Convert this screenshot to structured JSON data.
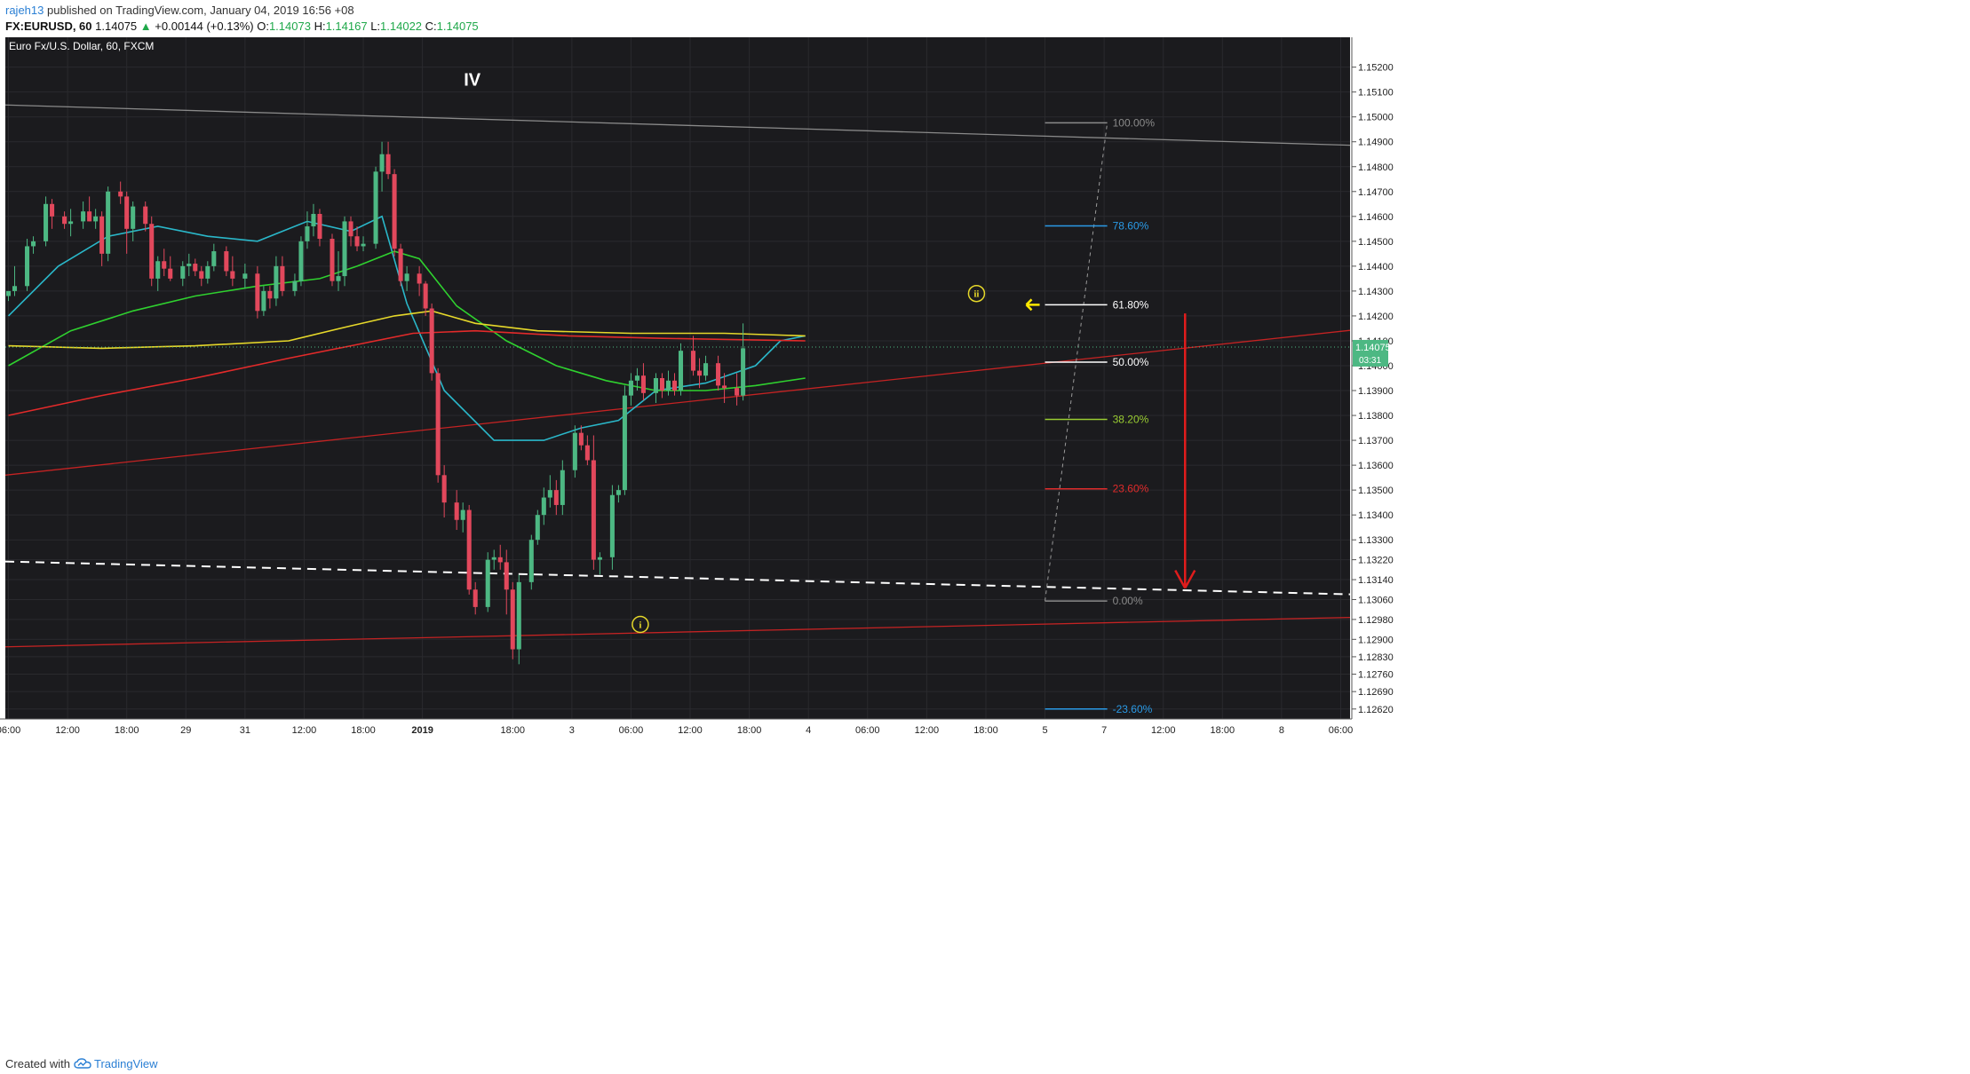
{
  "header": {
    "user": "rajeh13",
    "published": "published on TradingView.com, January 04, 2019 16:56 +08",
    "symbol": "FX:EURUSD, 60",
    "last": "1.14075",
    "change_arrow": "▲",
    "change": "+0.00144 (+0.13%)",
    "o_label": "O:",
    "o": "1.14073",
    "h_label": "H:",
    "h": "1.14167",
    "l_label": "L:",
    "l": "1.14022",
    "c_label": "C:",
    "c": "1.14075"
  },
  "footer": {
    "created_with": "Created with",
    "brand": "TradingView",
    "logo_icon": "tradingview-cloud-icon"
  },
  "colors": {
    "background": "#1b1b1e",
    "grid": "#2a2a2e",
    "bull": "#4db883",
    "bear": "#e2485c",
    "ma_cyan": "#2ab7c9",
    "ma_green": "#2fd12f",
    "ma_yellow": "#e6d82a",
    "ma_red": "#e22a2a",
    "last_price": "#4db883",
    "arrow_red": "#e01c1c",
    "arrow_yellow": "#ffea00"
  },
  "chart_data": {
    "type": "candlestick",
    "title": "Euro Fx/U.S. Dollar, 60, FXCM",
    "ylim": [
      1.1258,
      1.1532
    ],
    "y_ticks": [
      "1.15200",
      "1.15100",
      "1.15000",
      "1.14900",
      "1.14800",
      "1.14700",
      "1.14600",
      "1.14500",
      "1.14400",
      "1.14300",
      "1.14200",
      "1.14100",
      "1.14000",
      "1.13900",
      "1.13800",
      "1.13700",
      "1.13600",
      "1.13500",
      "1.13400",
      "1.13300",
      "1.13220",
      "1.13140",
      "1.13060",
      "1.12980",
      "1.12900",
      "1.12830",
      "1.12760",
      "1.12690",
      "1.12620"
    ],
    "x_ticks": [
      {
        "label": "06:00",
        "bar": 0
      },
      {
        "label": "12:00",
        "bar": 9.5
      },
      {
        "label": "18:00",
        "bar": 19
      },
      {
        "label": "29",
        "bar": 28.5
      },
      {
        "label": "31",
        "bar": 38
      },
      {
        "label": "12:00",
        "bar": 47.5
      },
      {
        "label": "18:00",
        "bar": 57
      },
      {
        "label": "2019",
        "bar": 66.5
      },
      {
        "label": "18:00",
        "bar": 81
      },
      {
        "label": "3",
        "bar": 90.5
      },
      {
        "label": "06:00",
        "bar": 100
      },
      {
        "label": "12:00",
        "bar": 109.5
      },
      {
        "label": "18:00",
        "bar": 119
      },
      {
        "label": "4",
        "bar": 128.5
      },
      {
        "label": "06:00",
        "bar": 138
      },
      {
        "label": "12:00",
        "bar": 147.5
      },
      {
        "label": "18:00",
        "bar": 157
      },
      {
        "label": "5",
        "bar": 166.5
      },
      {
        "label": "7",
        "bar": 176
      },
      {
        "label": "12:00",
        "bar": 185.5
      },
      {
        "label": "18:00",
        "bar": 195
      },
      {
        "label": "8",
        "bar": 204.5
      },
      {
        "label": "06:00",
        "bar": 214
      }
    ],
    "x_range": [
      -0.5,
      215.5
    ],
    "candles": [
      [
        1.1428,
        1.143,
        1.1426,
        1.143
      ],
      [
        1.143,
        1.144,
        1.1428,
        1.1432
      ],
      [
        1.1432,
        1.1451,
        1.143,
        1.1448
      ],
      [
        1.1448,
        1.1452,
        1.1445,
        1.145
      ],
      [
        1.145,
        1.1468,
        1.1448,
        1.1465
      ],
      [
        1.1465,
        1.1467,
        1.1455,
        1.146
      ],
      [
        1.146,
        1.1462,
        1.1455,
        1.1457
      ],
      [
        1.1457,
        1.1463,
        1.1452,
        1.1458
      ],
      [
        1.1458,
        1.1466,
        1.1455,
        1.1462
      ],
      [
        1.1462,
        1.1468,
        1.1458,
        1.1458
      ],
      [
        1.1458,
        1.1463,
        1.1455,
        1.146
      ],
      [
        1.146,
        1.1462,
        1.144,
        1.1445
      ],
      [
        1.1445,
        1.1472,
        1.1442,
        1.147
      ],
      [
        1.147,
        1.1474,
        1.1465,
        1.1468
      ],
      [
        1.1468,
        1.147,
        1.1445,
        1.1455
      ],
      [
        1.1455,
        1.1466,
        1.145,
        1.1464
      ],
      [
        1.1464,
        1.1466,
        1.1454,
        1.1457
      ],
      [
        1.1457,
        1.146,
        1.1432,
        1.1435
      ],
      [
        1.1435,
        1.1444,
        1.143,
        1.1442
      ],
      [
        1.1442,
        1.1447,
        1.1436,
        1.1439
      ],
      [
        1.1439,
        1.1444,
        1.1434,
        1.1435
      ],
      [
        1.1435,
        1.1442,
        1.1432,
        1.144
      ],
      [
        1.144,
        1.1445,
        1.1436,
        1.1441
      ],
      [
        1.1441,
        1.1443,
        1.1436,
        1.1438
      ],
      [
        1.1438,
        1.144,
        1.1432,
        1.1435
      ],
      [
        1.1435,
        1.1442,
        1.1433,
        1.144
      ],
      [
        1.144,
        1.1449,
        1.1438,
        1.1446
      ],
      [
        1.1446,
        1.1448,
        1.1436,
        1.1438
      ],
      [
        1.1438,
        1.1444,
        1.1432,
        1.1435
      ],
      [
        1.1435,
        1.1441,
        1.1431,
        1.1437
      ],
      [
        1.1437,
        1.144,
        1.1419,
        1.1422
      ],
      [
        1.1422,
        1.1432,
        1.142,
        1.143
      ],
      [
        1.143,
        1.1432,
        1.1423,
        1.1427
      ],
      [
        1.1427,
        1.1444,
        1.1424,
        1.144
      ],
      [
        1.144,
        1.1444,
        1.1428,
        1.143
      ],
      [
        1.143,
        1.1437,
        1.1428,
        1.1434
      ],
      [
        1.1434,
        1.1452,
        1.1432,
        1.145
      ],
      [
        1.145,
        1.1462,
        1.1447,
        1.1456
      ],
      [
        1.1456,
        1.1465,
        1.1452,
        1.1461
      ],
      [
        1.1461,
        1.1463,
        1.1448,
        1.1451
      ],
      [
        1.1451,
        1.1453,
        1.1432,
        1.1434
      ],
      [
        1.1434,
        1.1446,
        1.143,
        1.1436
      ],
      [
        1.1436,
        1.146,
        1.1432,
        1.1458
      ],
      [
        1.1458,
        1.146,
        1.1448,
        1.1452
      ],
      [
        1.1452,
        1.1456,
        1.1446,
        1.1448
      ],
      [
        1.1448,
        1.1452,
        1.1446,
        1.1449
      ],
      [
        1.1449,
        1.148,
        1.1447,
        1.1478
      ],
      [
        1.1478,
        1.149,
        1.147,
        1.1485
      ],
      [
        1.1485,
        1.149,
        1.1475,
        1.1477
      ],
      [
        1.1477,
        1.1479,
        1.1444,
        1.1447
      ],
      [
        1.1447,
        1.1449,
        1.1432,
        1.1434
      ],
      [
        1.1434,
        1.144,
        1.143,
        1.1437
      ],
      [
        1.1437,
        1.144,
        1.1428,
        1.1433
      ],
      [
        1.1433,
        1.1434,
        1.142,
        1.1423
      ],
      [
        1.1423,
        1.1425,
        1.1394,
        1.1397
      ],
      [
        1.1397,
        1.1399,
        1.1353,
        1.1356
      ],
      [
        1.1356,
        1.136,
        1.1339,
        1.1345
      ],
      [
        1.1345,
        1.135,
        1.1334,
        1.1338
      ],
      [
        1.1338,
        1.1345,
        1.1333,
        1.1342
      ],
      [
        1.1342,
        1.1344,
        1.1308,
        1.131
      ],
      [
        1.131,
        1.1313,
        1.13,
        1.1303
      ],
      [
        1.1303,
        1.1325,
        1.1301,
        1.1322
      ],
      [
        1.1322,
        1.1326,
        1.1318,
        1.1323
      ],
      [
        1.1323,
        1.1328,
        1.1318,
        1.1321
      ],
      [
        1.1321,
        1.1326,
        1.13,
        1.131
      ],
      [
        1.131,
        1.1313,
        1.1282,
        1.1286
      ],
      [
        1.1286,
        1.1316,
        1.128,
        1.1313
      ],
      [
        1.1313,
        1.1332,
        1.131,
        1.133
      ],
      [
        1.133,
        1.1342,
        1.1328,
        1.134
      ],
      [
        1.134,
        1.1351,
        1.1336,
        1.1347
      ],
      [
        1.1347,
        1.1356,
        1.1343,
        1.135
      ],
      [
        1.135,
        1.1354,
        1.134,
        1.1344
      ],
      [
        1.1344,
        1.1362,
        1.134,
        1.1358
      ],
      [
        1.1358,
        1.1376,
        1.1355,
        1.1373
      ],
      [
        1.1373,
        1.1376,
        1.1366,
        1.1368
      ],
      [
        1.1368,
        1.1372,
        1.136,
        1.1362
      ],
      [
        1.1362,
        1.1372,
        1.1318,
        1.1322
      ],
      [
        1.1322,
        1.1325,
        1.1316,
        1.1323
      ],
      [
        1.1323,
        1.1352,
        1.1318,
        1.1348
      ],
      [
        1.1348,
        1.1352,
        1.1345,
        1.135
      ],
      [
        1.135,
        1.1392,
        1.1348,
        1.1388
      ],
      [
        1.1388,
        1.1397,
        1.1384,
        1.1394
      ],
      [
        1.1394,
        1.1399,
        1.139,
        1.1396
      ],
      [
        1.1396,
        1.1401,
        1.1386,
        1.1389
      ],
      [
        1.1389,
        1.1397,
        1.1385,
        1.1395
      ],
      [
        1.1395,
        1.1397,
        1.1387,
        1.139
      ],
      [
        1.139,
        1.1398,
        1.1388,
        1.1394
      ],
      [
        1.1394,
        1.1397,
        1.1388,
        1.139
      ],
      [
        1.139,
        1.1409,
        1.1388,
        1.1406
      ],
      [
        1.1406,
        1.1412,
        1.1396,
        1.1398
      ],
      [
        1.1398,
        1.1403,
        1.1391,
        1.1396
      ],
      [
        1.1396,
        1.1404,
        1.1394,
        1.1401
      ],
      [
        1.1401,
        1.1404,
        1.139,
        1.1392
      ],
      [
        1.1392,
        1.1397,
        1.1385,
        1.1391
      ],
      [
        1.1391,
        1.1397,
        1.1384,
        1.1388
      ],
      [
        1.1388,
        1.1417,
        1.1386,
        1.1407
      ]
    ],
    "candle_slots": [
      0,
      1,
      3,
      4,
      6,
      7,
      9,
      10,
      12,
      13,
      14,
      15,
      16,
      18,
      19,
      20,
      22,
      23,
      24,
      25,
      26,
      28,
      29,
      30,
      31,
      32,
      33,
      35,
      36,
      38,
      40,
      41,
      42,
      43,
      44,
      46,
      47,
      48,
      49,
      50,
      52,
      53,
      54,
      55,
      56,
      57,
      59,
      60,
      61,
      62,
      63,
      64,
      66,
      67,
      68,
      69,
      70,
      72,
      73,
      74,
      75,
      77,
      78,
      79,
      80,
      81,
      82,
      84,
      85,
      86,
      87,
      88,
      89,
      91,
      92,
      93,
      94,
      95,
      97,
      98,
      99,
      100,
      101,
      102,
      104,
      105,
      106,
      107,
      108,
      110,
      111,
      112,
      114,
      115,
      117,
      118,
      119,
      121,
      122
    ],
    "moving_averages": [
      {
        "color": "ma_cyan",
        "points": [
          [
            0,
            1.142
          ],
          [
            8,
            1.144
          ],
          [
            16,
            1.1452
          ],
          [
            24,
            1.1456
          ],
          [
            32,
            1.1452
          ],
          [
            40,
            1.145
          ],
          [
            48,
            1.1458
          ],
          [
            55,
            1.1454
          ],
          [
            60,
            1.146
          ],
          [
            64,
            1.1425
          ],
          [
            70,
            1.139
          ],
          [
            78,
            1.137
          ],
          [
            86,
            1.137
          ],
          [
            92,
            1.1375
          ],
          [
            98,
            1.1378
          ],
          [
            104,
            1.139
          ],
          [
            112,
            1.1393
          ],
          [
            120,
            1.14
          ],
          [
            124,
            1.141
          ],
          [
            128,
            1.1412
          ]
        ]
      },
      {
        "color": "ma_green",
        "points": [
          [
            0,
            1.14
          ],
          [
            10,
            1.1414
          ],
          [
            20,
            1.1422
          ],
          [
            30,
            1.1428
          ],
          [
            40,
            1.1432
          ],
          [
            50,
            1.1435
          ],
          [
            56,
            1.144
          ],
          [
            62,
            1.1446
          ],
          [
            66,
            1.1443
          ],
          [
            72,
            1.1424
          ],
          [
            80,
            1.141
          ],
          [
            88,
            1.14
          ],
          [
            96,
            1.1394
          ],
          [
            104,
            1.139
          ],
          [
            112,
            1.139
          ],
          [
            120,
            1.1392
          ],
          [
            128,
            1.1395
          ]
        ]
      },
      {
        "color": "ma_yellow",
        "points": [
          [
            0,
            1.1408
          ],
          [
            15,
            1.1407
          ],
          [
            30,
            1.1408
          ],
          [
            45,
            1.141
          ],
          [
            55,
            1.1416
          ],
          [
            62,
            1.142
          ],
          [
            68,
            1.1422
          ],
          [
            75,
            1.1417
          ],
          [
            85,
            1.1414
          ],
          [
            100,
            1.1413
          ],
          [
            115,
            1.1413
          ],
          [
            128,
            1.1412
          ]
        ]
      },
      {
        "color": "ma_red",
        "points": [
          [
            0,
            1.138
          ],
          [
            15,
            1.1388
          ],
          [
            30,
            1.1395
          ],
          [
            45,
            1.1403
          ],
          [
            55,
            1.1408
          ],
          [
            65,
            1.1413
          ],
          [
            75,
            1.1414
          ],
          [
            90,
            1.1412
          ],
          [
            105,
            1.1411
          ],
          [
            128,
            1.141
          ]
        ]
      }
    ],
    "trend_lines": [
      {
        "kind": "upper-gray",
        "from": [
          -0.5,
          1.15048
        ],
        "to": [
          215.5,
          1.14886
        ],
        "color": "#8a8a8a",
        "dash": false
      },
      {
        "kind": "upper-red",
        "from": [
          -0.5,
          1.1356
        ],
        "to": [
          215.5,
          1.14142
        ],
        "color": "#c42323",
        "dash": false
      },
      {
        "kind": "white-dashed",
        "from": [
          -0.5,
          1.13213
        ],
        "to": [
          215.5,
          1.13081
        ],
        "color": "#ffffff",
        "dash": true
      },
      {
        "kind": "lower-red",
        "from": [
          -0.5,
          1.1287
        ],
        "to": [
          215.5,
          1.12988
        ],
        "color": "#c42323",
        "dash": false
      }
    ],
    "fib_source_line": {
      "from": [
        166.5,
        1.13054
      ],
      "to": [
        176.5,
        1.14976
      ],
      "color": "#9a9a9a"
    },
    "fib_levels": [
      {
        "label": "100.00%",
        "price": 1.14976,
        "color": "#8a8a8a"
      },
      {
        "label": "78.60%",
        "price": 1.14562,
        "color": "#2a9ae6"
      },
      {
        "label": "61.80%",
        "price": 1.14245,
        "color": "#ffffff"
      },
      {
        "label": "50.00%",
        "price": 1.14014,
        "color": "#ffffff"
      },
      {
        "label": "38.20%",
        "price": 1.13784,
        "color": "#9acd32"
      },
      {
        "label": "23.60%",
        "price": 1.13505,
        "color": "#e02b2b"
      },
      {
        "label": "0.00%",
        "price": 1.13054,
        "color": "#8a8a8a"
      },
      {
        "label": "-23.60%",
        "price": 1.1262,
        "color": "#2a9ae6"
      }
    ],
    "fib_range": [
      166.5,
      176.5
    ],
    "annotations": {
      "wave_IV": {
        "text": "IV",
        "bar": 74.5,
        "price": 1.1515
      },
      "wave_i": {
        "text": "i",
        "bar": 101.5,
        "price": 1.1296
      },
      "wave_ii": {
        "text": "ii",
        "bar": 155.5,
        "price": 1.1429
      },
      "yellow_arrow": {
        "bar": 164.5,
        "price": 1.14245
      },
      "red_arrow": {
        "bar": 189,
        "from_price": 1.1421,
        "to_price": 1.13106
      }
    },
    "last_price": {
      "value": 1.14075,
      "label": "1.14075",
      "countdown": "03:31"
    }
  }
}
